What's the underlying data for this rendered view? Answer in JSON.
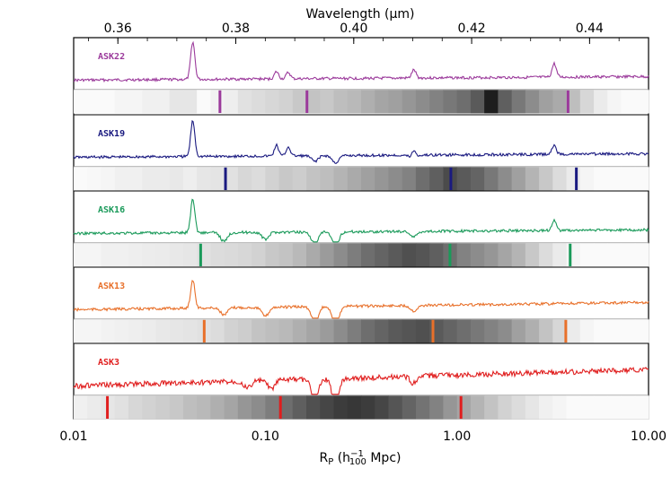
{
  "chart_data": {
    "type": "line",
    "top_axis": {
      "label": "Wavelength (μm)",
      "ticks": [
        "0.36",
        "0.38",
        "0.40",
        "0.42",
        "0.44"
      ],
      "range": [
        0.3525,
        0.45
      ]
    },
    "bottom_axis": {
      "label_main": "R",
      "label_sub": "P",
      "label_open": " (h",
      "label_sup": "−1",
      "label_sub2": "100",
      "label_close": " Mpc)",
      "ticks": [
        "0.01",
        "0.10",
        "1.00",
        "10.00"
      ],
      "range": [
        0.01,
        10.0
      ],
      "scale": "log"
    },
    "series": [
      {
        "name": "ASK22",
        "color": "#9b3a9b",
        "peaks": [
          [
            0.3727,
            42
          ],
          [
            0.3869,
            8
          ],
          [
            0.3889,
            7
          ],
          [
            0.4102,
            9
          ],
          [
            0.434,
            15
          ]
        ],
        "dips": [],
        "marker_positions": [
          0.058,
          0.165,
          3.8
        ],
        "strip_grays": [
          250,
          250,
          250,
          245,
          245,
          240,
          240,
          230,
          230,
          250,
          242,
          238,
          225,
          220,
          215,
          210,
          200,
          195,
          200,
          190,
          185,
          175,
          165,
          160,
          150,
          140,
          130,
          120,
          110,
          90,
          30,
          95,
          120,
          140,
          160,
          170,
          190,
          215,
          235,
          245,
          250,
          250
        ]
      },
      {
        "name": "ASK19",
        "color": "#1a1a80",
        "peaks": [
          [
            0.3727,
            40
          ],
          [
            0.3869,
            12
          ],
          [
            0.3889,
            10
          ],
          [
            0.4102,
            10
          ],
          [
            0.434,
            10
          ]
        ],
        "dips": [
          [
            0.3934,
            6
          ],
          [
            0.3969,
            8
          ],
          [
            0.4101,
            5
          ]
        ],
        "marker_positions": [
          0.062,
          0.93,
          4.2
        ],
        "strip_grays": [
          250,
          248,
          245,
          240,
          240,
          235,
          235,
          232,
          238,
          230,
          228,
          225,
          215,
          220,
          210,
          200,
          205,
          195,
          190,
          180,
          170,
          160,
          150,
          140,
          130,
          110,
          95,
          75,
          90,
          100,
          120,
          140,
          160,
          180,
          200,
          220,
          235,
          245,
          250,
          250,
          250,
          250
        ]
      },
      {
        "name": "ASK16",
        "color": "#1a9a5a",
        "peaks": [
          [
            0.3727,
            38
          ],
          [
            0.434,
            12
          ]
        ],
        "dips": [
          [
            0.378,
            10
          ],
          [
            0.385,
            8
          ],
          [
            0.3934,
            14
          ],
          [
            0.3969,
            16
          ],
          [
            0.4102,
            6
          ]
        ],
        "marker_positions": [
          0.046,
          0.92,
          3.9
        ],
        "strip_grays": [
          245,
          245,
          240,
          240,
          238,
          236,
          235,
          232,
          230,
          225,
          220,
          218,
          215,
          210,
          200,
          195,
          185,
          170,
          155,
          140,
          125,
          110,
          100,
          90,
          80,
          85,
          95,
          110,
          130,
          140,
          150,
          165,
          180,
          200,
          220,
          235,
          245,
          250,
          250,
          250,
          250,
          250
        ]
      },
      {
        "name": "ASK13",
        "color": "#e8702a",
        "peaks": [
          [
            0.3727,
            32
          ]
        ],
        "dips": [
          [
            0.378,
            8
          ],
          [
            0.385,
            10
          ],
          [
            0.3934,
            18
          ],
          [
            0.3969,
            22
          ],
          [
            0.4102,
            6
          ]
        ],
        "marker_positions": [
          0.048,
          0.75,
          3.7
        ],
        "strip_grays": [
          245,
          245,
          242,
          240,
          238,
          236,
          232,
          230,
          228,
          225,
          220,
          210,
          205,
          195,
          190,
          185,
          175,
          165,
          155,
          140,
          125,
          110,
          100,
          90,
          85,
          80,
          90,
          100,
          110,
          120,
          130,
          140,
          160,
          175,
          195,
          215,
          235,
          245,
          250,
          250,
          250,
          250
        ]
      },
      {
        "name": "ASK3",
        "color": "#e01e1e",
        "peaks": [],
        "dips": [
          [
            0.382,
            8
          ],
          [
            0.386,
            10
          ],
          [
            0.3934,
            26
          ],
          [
            0.3969,
            30
          ],
          [
            0.4102,
            8
          ]
        ],
        "marker_positions": [
          0.015,
          0.12,
          1.05
        ],
        "strip_grays": [
          240,
          235,
          230,
          225,
          215,
          210,
          205,
          200,
          190,
          185,
          175,
          165,
          150,
          140,
          125,
          110,
          95,
          80,
          70,
          60,
          55,
          60,
          70,
          85,
          100,
          115,
          130,
          150,
          165,
          180,
          195,
          210,
          220,
          230,
          240,
          245,
          250,
          250,
          250,
          250,
          250,
          250
        ]
      }
    ]
  }
}
